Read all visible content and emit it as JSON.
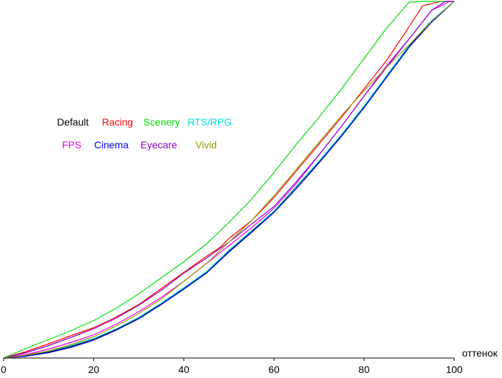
{
  "chart_data": {
    "type": "line",
    "xlabel": "оттенок",
    "ylabel": "",
    "xlim": [
      0,
      100
    ],
    "ylim": [
      0,
      100
    ],
    "xticks": [
      0,
      20,
      40,
      60,
      80,
      100
    ],
    "grid": false,
    "legend_position": "center-left",
    "series": [
      {
        "name": "Default",
        "color": "#000000",
        "points": [
          [
            0,
            0
          ],
          [
            5,
            0.7
          ],
          [
            10,
            1.7
          ],
          [
            15,
            3.3
          ],
          [
            20,
            5.3
          ],
          [
            25,
            8
          ],
          [
            30,
            11.2
          ],
          [
            35,
            15.2
          ],
          [
            40,
            19.5
          ],
          [
            45,
            24
          ],
          [
            50,
            30
          ],
          [
            55,
            35.5
          ],
          [
            60,
            41
          ],
          [
            65,
            48
          ],
          [
            70,
            55
          ],
          [
            75,
            62.5
          ],
          [
            80,
            70.5
          ],
          [
            85,
            79
          ],
          [
            90,
            87.5
          ],
          [
            95,
            94.5
          ],
          [
            100,
            100
          ]
        ]
      },
      {
        "name": "Racing",
        "color": "#ff0000",
        "points": [
          [
            0,
            0
          ],
          [
            5,
            1.8
          ],
          [
            10,
            4
          ],
          [
            15,
            6.3
          ],
          [
            20,
            8.5
          ],
          [
            25,
            11.5
          ],
          [
            30,
            15
          ],
          [
            35,
            19.5
          ],
          [
            40,
            24
          ],
          [
            45,
            28.5
          ],
          [
            48,
            31
          ],
          [
            50,
            33.5
          ],
          [
            55,
            38.5
          ],
          [
            60,
            45
          ],
          [
            65,
            52.5
          ],
          [
            70,
            60
          ],
          [
            75,
            67.5
          ],
          [
            80,
            75.5
          ],
          [
            85,
            83.5
          ],
          [
            89,
            91
          ],
          [
            93,
            98.8
          ],
          [
            97,
            100
          ],
          [
            100,
            100
          ]
        ]
      },
      {
        "name": "Scenery",
        "color": "#00dd00",
        "points": [
          [
            0,
            0
          ],
          [
            5,
            2.7
          ],
          [
            10,
            5.2
          ],
          [
            15,
            7.7
          ],
          [
            20,
            10.5
          ],
          [
            25,
            14
          ],
          [
            30,
            18
          ],
          [
            35,
            22.5
          ],
          [
            40,
            27
          ],
          [
            45,
            32
          ],
          [
            50,
            38
          ],
          [
            55,
            44.5
          ],
          [
            60,
            52
          ],
          [
            65,
            60
          ],
          [
            70,
            67.5
          ],
          [
            75,
            75.5
          ],
          [
            80,
            84
          ],
          [
            85,
            92.5
          ],
          [
            90,
            99.8
          ],
          [
            93,
            100
          ],
          [
            100,
            100
          ]
        ]
      },
      {
        "name": "RTS/RPG",
        "color": "#00dddd",
        "points": [
          [
            0,
            0
          ],
          [
            5,
            0.8
          ],
          [
            10,
            1.9
          ],
          [
            15,
            3.5
          ],
          [
            20,
            5.5
          ],
          [
            25,
            8.2
          ],
          [
            30,
            11.4
          ],
          [
            35,
            15.4
          ],
          [
            40,
            19.7
          ],
          [
            45,
            24.2
          ],
          [
            50,
            30.2
          ],
          [
            55,
            35.7
          ],
          [
            60,
            41.2
          ],
          [
            65,
            48.2
          ],
          [
            70,
            55.2
          ],
          [
            75,
            62.7
          ],
          [
            80,
            70.7
          ],
          [
            85,
            79.2
          ],
          [
            90,
            87.7
          ],
          [
            95,
            94.7
          ],
          [
            100,
            100
          ]
        ]
      },
      {
        "name": "FPS",
        "color": "#ee00ee",
        "points": [
          [
            0,
            0
          ],
          [
            5,
            1
          ],
          [
            10,
            2.5
          ],
          [
            15,
            4.4
          ],
          [
            20,
            6.5
          ],
          [
            25,
            9.5
          ],
          [
            30,
            13
          ],
          [
            35,
            17
          ],
          [
            40,
            21.5
          ],
          [
            45,
            26.5
          ],
          [
            50,
            31.5
          ],
          [
            55,
            36.5
          ],
          [
            60,
            42
          ],
          [
            65,
            49
          ],
          [
            70,
            57
          ],
          [
            75,
            65
          ],
          [
            80,
            73.5
          ],
          [
            85,
            82
          ],
          [
            90,
            89.5
          ],
          [
            95,
            97.5
          ],
          [
            99,
            100
          ],
          [
            100,
            100
          ]
        ]
      },
      {
        "name": "Cinema",
        "color": "#0000ff",
        "points": [
          [
            0,
            0
          ],
          [
            5,
            0.5
          ],
          [
            10,
            1.5
          ],
          [
            15,
            3
          ],
          [
            20,
            5
          ],
          [
            25,
            7.8
          ],
          [
            30,
            11
          ],
          [
            35,
            15
          ],
          [
            40,
            19.3
          ],
          [
            45,
            23.8
          ],
          [
            50,
            29.7
          ],
          [
            55,
            35.2
          ],
          [
            60,
            40.8
          ],
          [
            65,
            47.5
          ],
          [
            70,
            54.7
          ],
          [
            75,
            62.2
          ],
          [
            80,
            70.2
          ],
          [
            85,
            78.7
          ],
          [
            90,
            87.2
          ],
          [
            95,
            94.2
          ],
          [
            100,
            100
          ]
        ]
      },
      {
        "name": "Eyecare",
        "color": "#8800cc",
        "points": [
          [
            0,
            0
          ],
          [
            5,
            1.5
          ],
          [
            10,
            3.5
          ],
          [
            15,
            5.8
          ],
          [
            20,
            8.2
          ],
          [
            25,
            11.2
          ],
          [
            30,
            14.8
          ],
          [
            35,
            19
          ],
          [
            40,
            23.8
          ],
          [
            45,
            28
          ],
          [
            50,
            32.5
          ],
          [
            55,
            37.5
          ],
          [
            60,
            42.5
          ],
          [
            65,
            49.5
          ],
          [
            70,
            57
          ],
          [
            75,
            65
          ],
          [
            80,
            73.5
          ],
          [
            85,
            81.5
          ],
          [
            90,
            89.5
          ],
          [
            95,
            97.5
          ],
          [
            98,
            100
          ],
          [
            100,
            100
          ]
        ]
      },
      {
        "name": "Vivid",
        "color": "#999900",
        "points": [
          [
            0,
            0
          ],
          [
            5,
            0.8
          ],
          [
            10,
            2
          ],
          [
            15,
            3.8
          ],
          [
            20,
            6
          ],
          [
            25,
            9
          ],
          [
            30,
            12.5
          ],
          [
            35,
            16.5
          ],
          [
            40,
            21.5
          ],
          [
            45,
            26.5
          ],
          [
            50,
            32.5
          ],
          [
            55,
            38.5
          ],
          [
            60,
            45.5
          ],
          [
            65,
            53
          ],
          [
            70,
            60.5
          ],
          [
            75,
            68
          ],
          [
            80,
            75
          ],
          [
            85,
            81.5
          ],
          [
            90,
            87.8
          ],
          [
            95,
            94.5
          ],
          [
            100,
            100
          ]
        ]
      }
    ]
  }
}
